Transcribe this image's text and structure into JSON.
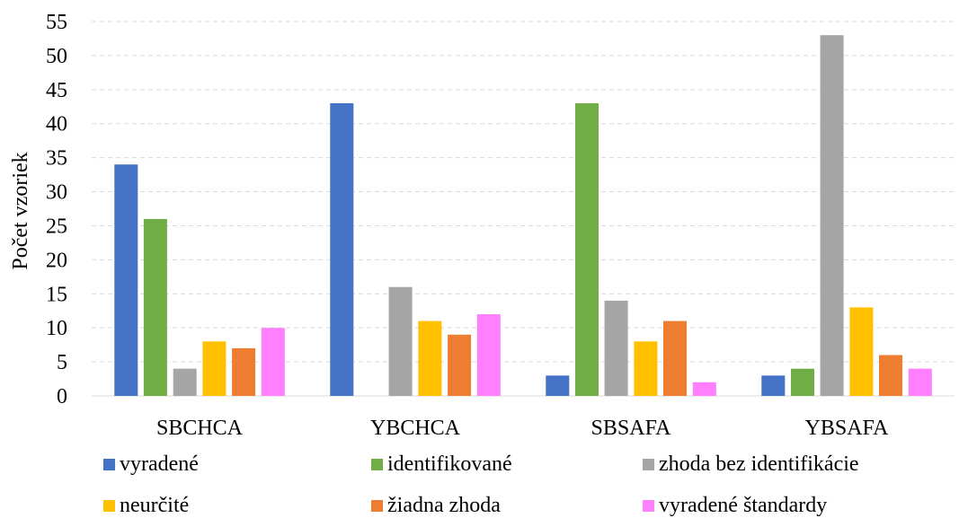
{
  "chart_data": {
    "type": "bar",
    "title": "",
    "xlabel": "",
    "ylabel": "Počet vzoriek",
    "ylim": [
      0,
      55
    ],
    "yticks": [
      0,
      5,
      10,
      15,
      20,
      25,
      30,
      35,
      40,
      45,
      50,
      55
    ],
    "grid": true,
    "legend_position": "bottom",
    "categories": [
      "SBCHCA",
      "YBCHCA",
      "SBSAFA",
      "YBSAFA"
    ],
    "series": [
      {
        "name": "vyradené",
        "color": "#4472C4",
        "values": [
          34,
          43,
          3,
          3
        ]
      },
      {
        "name": "identifikované",
        "color": "#70AD47",
        "values": [
          26,
          0,
          43,
          4
        ]
      },
      {
        "name": "zhoda bez identifikácie",
        "color": "#A5A5A5",
        "values": [
          4,
          16,
          14,
          53
        ]
      },
      {
        "name": "neurčité",
        "color": "#FFC000",
        "values": [
          8,
          11,
          8,
          13
        ]
      },
      {
        "name": "žiadna zhoda",
        "color": "#ED7D31",
        "values": [
          7,
          9,
          11,
          6
        ]
      },
      {
        "name": "vyradené štandardy",
        "color": "#FF7FFF",
        "values": [
          10,
          12,
          2,
          4
        ]
      }
    ]
  }
}
